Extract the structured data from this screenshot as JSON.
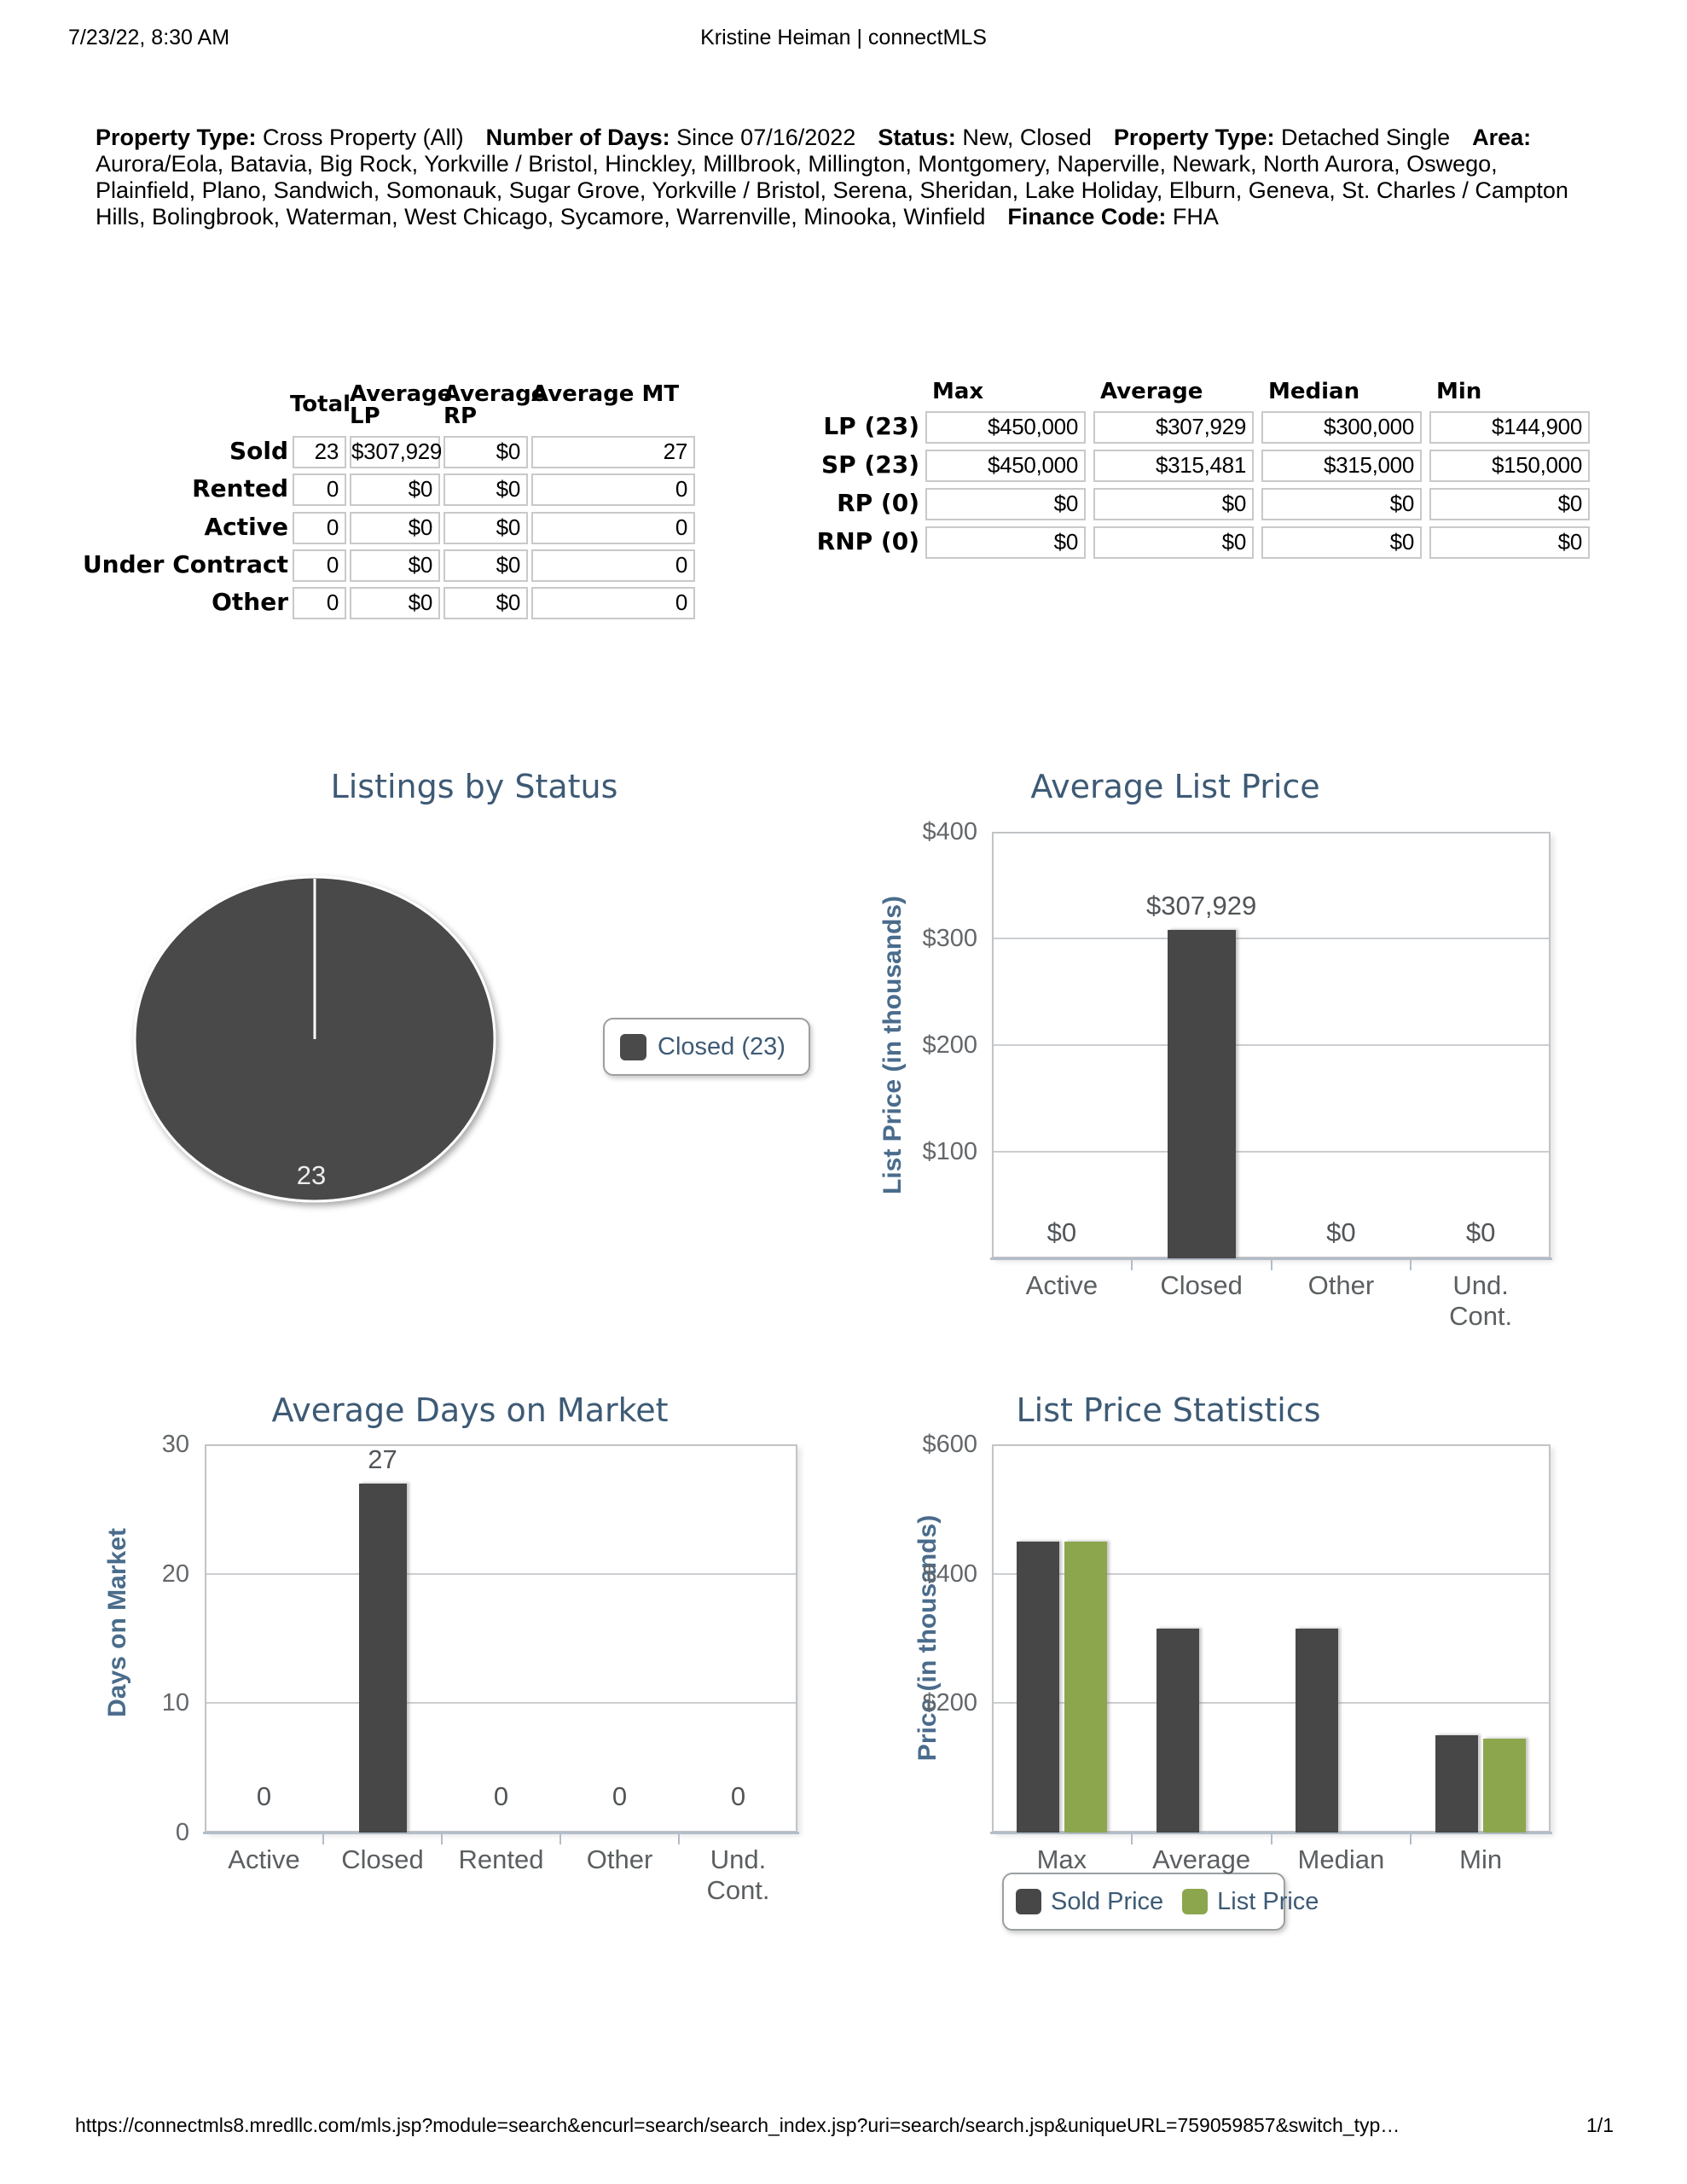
{
  "page": {
    "header_left": "7/23/22, 8:30 AM",
    "header_center": "Kristine Heiman | connectMLS",
    "footer_url": "https://connectmls8.mredllc.com/mls.jsp?module=search&encurl=search/search_index.jsp?uri=search/search.jsp&uniqueURL=759059857&switch_typ…",
    "footer_page": "1/1"
  },
  "criteria": [
    {
      "label": "Property Type:",
      "value": "Cross Property (All)"
    },
    {
      "label": "Number of Days:",
      "value": "Since 07/16/2022"
    },
    {
      "label": "Status:",
      "value": "New, Closed"
    },
    {
      "label": "Property Type:",
      "value": "Detached Single"
    },
    {
      "label": "Area:",
      "value": "Aurora/Eola, Batavia, Big Rock, Yorkville / Bristol, Hinckley, Millbrook, Millington, Montgomery, Naperville, Newark, North Aurora, Oswego, Plainfield, Plano, Sandwich, Somonauk, Sugar Grove, Yorkville / Bristol, Serena, Sheridan, Lake Holiday, Elburn, Geneva, St. Charles / Campton Hills, Bolingbrook, Waterman, West Chicago, Sycamore, Warrenville, Minooka, Winfield"
    },
    {
      "label": "Finance Code:",
      "value": "FHA"
    }
  ],
  "status_table": {
    "columns": [
      "Total",
      "Average LP",
      "Average RP",
      "Average MT"
    ],
    "rows": [
      {
        "label": "Sold",
        "values": [
          "23",
          "$307,929",
          "$0",
          "27"
        ]
      },
      {
        "label": "Rented",
        "values": [
          "0",
          "$0",
          "$0",
          "0"
        ]
      },
      {
        "label": "Active",
        "values": [
          "0",
          "$0",
          "$0",
          "0"
        ]
      },
      {
        "label": "Under Contract",
        "values": [
          "0",
          "$0",
          "$0",
          "0"
        ]
      },
      {
        "label": "Other",
        "values": [
          "0",
          "$0",
          "$0",
          "0"
        ]
      }
    ]
  },
  "price_table": {
    "columns": [
      "Max",
      "Average",
      "Median",
      "Min"
    ],
    "rows": [
      {
        "label": "LP (23)",
        "values": [
          "$450,000",
          "$307,929",
          "$300,000",
          "$144,900"
        ]
      },
      {
        "label": "SP (23)",
        "values": [
          "$450,000",
          "$315,481",
          "$315,000",
          "$150,000"
        ]
      },
      {
        "label": "RP (0)",
        "values": [
          "$0",
          "$0",
          "$0",
          "$0"
        ]
      },
      {
        "label": "RNP (0)",
        "values": [
          "$0",
          "$0",
          "$0",
          "$0"
        ]
      }
    ]
  },
  "colors": {
    "title_slate": "#3d5a75",
    "axis_label_blue": "#4a6c8c",
    "bar_dark": "#474747",
    "bar_green": "#8ca64e",
    "pie_dark": "#4a4a4a"
  },
  "chart_data": [
    {
      "id": "listings-by-status",
      "type": "pie",
      "title": "Listings by Status",
      "slices": [
        {
          "label": "Closed",
          "value": 23,
          "color": "#4a4a4a",
          "data_label": "23"
        }
      ],
      "legend": [
        {
          "label": "Closed (23)",
          "color": "#4a4a4a"
        }
      ],
      "legend_position": "right"
    },
    {
      "id": "average-list-price",
      "type": "bar",
      "title": "Average List Price",
      "xlabel": "",
      "ylabel": "List Price (in thousands)",
      "categories": [
        "Active",
        "Closed",
        "Other",
        "Und.\nCont."
      ],
      "values": [
        0,
        307.929,
        0,
        0
      ],
      "data_labels": [
        "$0",
        "$307,929",
        "$0",
        "$0"
      ],
      "ylim": [
        0,
        400
      ],
      "yticks": [
        {
          "value": 400,
          "label": "$400"
        },
        {
          "value": 300,
          "label": "$300"
        },
        {
          "value": 200,
          "label": "$200"
        },
        {
          "value": 100,
          "label": "$100"
        }
      ],
      "grid": true,
      "bar_color": "#474747"
    },
    {
      "id": "average-days-on-market",
      "type": "bar",
      "title": "Average Days on Market",
      "xlabel": "",
      "ylabel": "Days on Market",
      "categories": [
        "Active",
        "Closed",
        "Rented",
        "Other",
        "Und.\nCont."
      ],
      "values": [
        0,
        27,
        0,
        0,
        0
      ],
      "data_labels": [
        "0",
        "27",
        "0",
        "0",
        "0"
      ],
      "ylim": [
        0,
        30
      ],
      "yticks": [
        {
          "value": 30,
          "label": "30"
        },
        {
          "value": 20,
          "label": "20"
        },
        {
          "value": 10,
          "label": "10"
        },
        {
          "value": 0,
          "label": "0"
        }
      ],
      "grid": true,
      "bar_color": "#474747"
    },
    {
      "id": "list-price-statistics",
      "type": "bar",
      "title": "List Price Statistics",
      "xlabel": "",
      "ylabel": "Price (in thousands)",
      "categories": [
        "Max",
        "Average",
        "Median",
        "Min"
      ],
      "series": [
        {
          "name": "Sold Price",
          "color": "#474747",
          "values": [
            450,
            315.481,
            315,
            150
          ]
        },
        {
          "name": "List Price",
          "color": "#8ca64e",
          "values": [
            450,
            null,
            null,
            144.9
          ]
        }
      ],
      "ylim": [
        0,
        600
      ],
      "yticks": [
        {
          "value": 600,
          "label": "$600"
        },
        {
          "value": 400,
          "label": "$400"
        },
        {
          "value": 200,
          "label": "$200"
        }
      ],
      "grid": true,
      "legend_position": "bottom"
    }
  ]
}
